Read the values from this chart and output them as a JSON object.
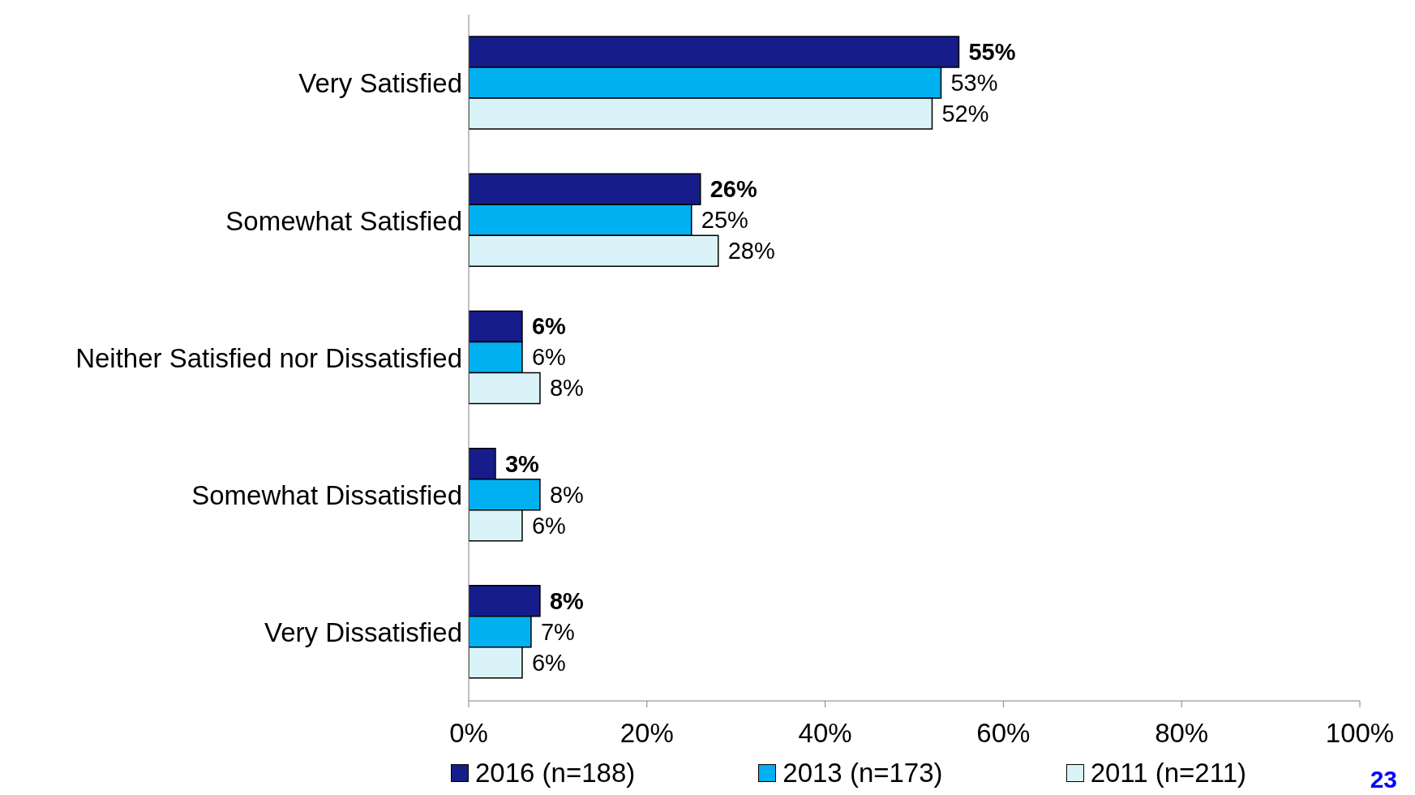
{
  "chart_data": {
    "type": "bar",
    "orientation": "horizontal",
    "categories": [
      "Very Satisfied",
      "Somewhat Satisfied",
      "Neither Satisfied nor Dissatisfied",
      "Somewhat Dissatisfied",
      "Very Dissatisfied"
    ],
    "series": [
      {
        "name": "2016 (n=188)",
        "color": "#161c8a",
        "values": [
          55,
          26,
          6,
          3,
          8
        ],
        "value_labels": [
          "55%",
          "26%",
          "6%",
          "3%",
          "8%"
        ]
      },
      {
        "name": "2013 (n=173)",
        "color": "#00b0f0",
        "values": [
          53,
          25,
          6,
          8,
          7
        ],
        "value_labels": [
          "53%",
          "25%",
          "6%",
          "8%",
          "7%"
        ]
      },
      {
        "name": "2011 (n=211)",
        "color": "#daf3f8",
        "values": [
          52,
          28,
          8,
          6,
          6
        ],
        "value_labels": [
          "52%",
          "28%",
          "8%",
          "6%",
          "6%"
        ]
      }
    ],
    "xlim": [
      0,
      100
    ],
    "xticks": [
      {
        "value": 0,
        "label": "0%"
      },
      {
        "value": 20,
        "label": "20%"
      },
      {
        "value": 40,
        "label": "40%"
      },
      {
        "value": 60,
        "label": "60%"
      },
      {
        "value": 80,
        "label": "80%"
      },
      {
        "value": 100,
        "label": "100%"
      }
    ],
    "legend": "bottom",
    "annotations": [
      "23"
    ]
  }
}
